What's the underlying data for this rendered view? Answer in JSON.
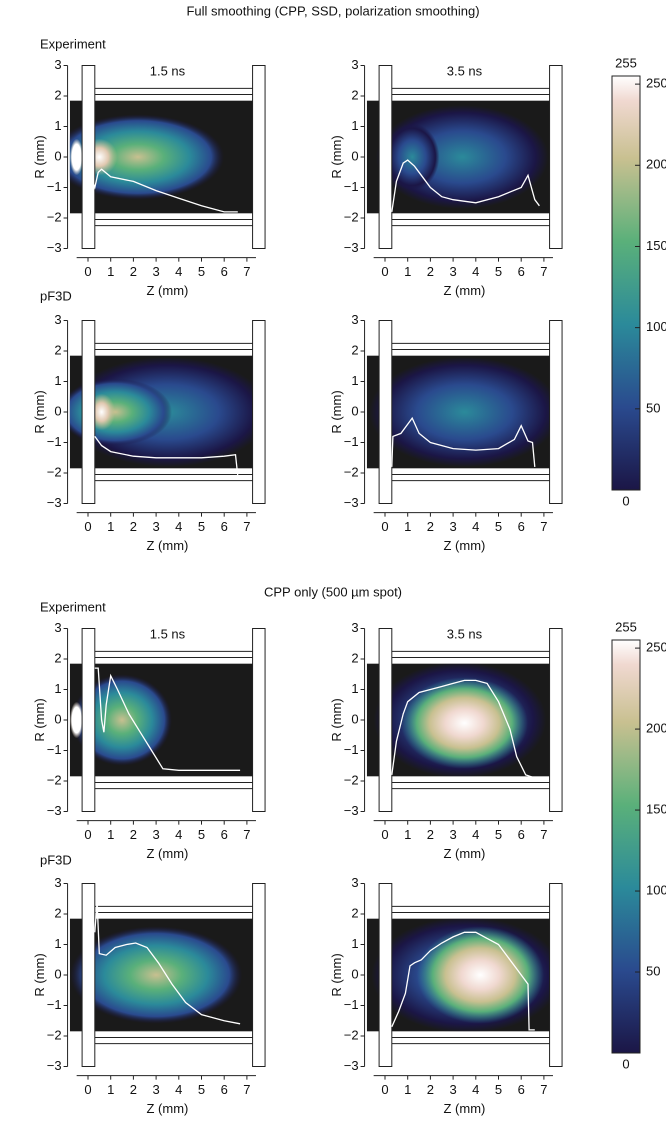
{
  "sections": [
    {
      "title": "Full smoothing (CPP, SSD, polarization smoothing)",
      "rows": [
        "Experiment",
        "pF3D"
      ]
    },
    {
      "title": "CPP only (500 µm spot)",
      "rows": [
        "Experiment",
        "pF3D"
      ]
    }
  ],
  "chart_data": [
    {
      "type": "heatmap",
      "title": "1.5 ns",
      "xlabel": "Z (mm)",
      "ylabel": "R (mm)",
      "xlim": [
        -0.9,
        7.4
      ],
      "ylim": [
        -3.3,
        3.3
      ],
      "xticks": [
        0,
        1,
        2,
        3,
        4,
        5,
        6,
        7
      ],
      "yticks": [
        {
          "value": -3,
          "label": "−3"
        },
        {
          "value": -2,
          "label": "−2"
        },
        {
          "value": -1,
          "label": "−1"
        },
        0,
        1,
        2,
        3
      ],
      "line_color": "#ffffff",
      "x": [
        0.2,
        0.3,
        0.45,
        0.6,
        1,
        2,
        3,
        4,
        5,
        6,
        6.6
      ],
      "values": [
        -0.8,
        -1.0,
        -0.5,
        -0.4,
        -0.65,
        -0.8,
        -1.1,
        -1.35,
        -1.6,
        -1.8,
        -1.8
      ]
    },
    {
      "type": "heatmap",
      "title": "3.5 ns",
      "xlabel": "Z (mm)",
      "ylabel": "R (mm)",
      "xlim": [
        -0.9,
        7.4
      ],
      "ylim": [
        -3.3,
        3.3
      ],
      "xticks": [
        0,
        1,
        2,
        3,
        4,
        5,
        6,
        7
      ],
      "yticks": [
        {
          "value": -3,
          "label": "−3"
        },
        {
          "value": -2,
          "label": "−2"
        },
        {
          "value": -1,
          "label": "−1"
        },
        0,
        1,
        2,
        3
      ],
      "line_color": "#ffffff",
      "x": [
        0.3,
        0.5,
        0.8,
        1.0,
        1.3,
        1.6,
        2,
        2.5,
        3,
        4,
        5,
        6,
        6.3,
        6.6,
        6.8
      ],
      "values": [
        -1.8,
        -0.8,
        -0.2,
        -0.1,
        -0.3,
        -0.6,
        -1.0,
        -1.3,
        -1.4,
        -1.5,
        -1.3,
        -1.0,
        -0.6,
        -1.4,
        -1.6
      ]
    },
    {
      "type": "heatmap",
      "xlabel": "Z (mm)",
      "ylabel": "R (mm)",
      "xlim": [
        -0.9,
        7.4
      ],
      "ylim": [
        -3.3,
        3.3
      ],
      "xticks": [
        0,
        1,
        2,
        3,
        4,
        5,
        6,
        7
      ],
      "yticks": [
        {
          "value": -3,
          "label": "−3"
        },
        {
          "value": -2,
          "label": "−2"
        },
        {
          "value": -1,
          "label": "−1"
        },
        0,
        1,
        2,
        3
      ],
      "line_color": "#ffffff",
      "x": [
        0.3,
        0.6,
        1,
        2,
        3,
        4,
        5,
        6,
        6.5,
        6.6
      ],
      "values": [
        -0.8,
        -1.1,
        -1.3,
        -1.45,
        -1.5,
        -1.5,
        -1.5,
        -1.45,
        -1.4,
        -2.1
      ]
    },
    {
      "type": "heatmap",
      "xlabel": "Z (mm)",
      "ylabel": "R (mm)",
      "xlim": [
        -0.9,
        7.4
      ],
      "ylim": [
        -3.3,
        3.3
      ],
      "xticks": [
        0,
        1,
        2,
        3,
        4,
        5,
        6,
        7
      ],
      "yticks": [
        {
          "value": -3,
          "label": "−3"
        },
        {
          "value": -2,
          "label": "−2"
        },
        {
          "value": -1,
          "label": "−1"
        },
        0,
        1,
        2,
        3
      ],
      "line_color": "#ffffff",
      "x": [
        0.3,
        0.35,
        0.7,
        1.2,
        1.5,
        2,
        3,
        4,
        5,
        5.7,
        6.0,
        6.3,
        6.5,
        6.6
      ],
      "values": [
        -1.8,
        -0.8,
        -0.7,
        -0.2,
        -0.7,
        -1.0,
        -1.2,
        -1.25,
        -1.2,
        -0.9,
        -0.45,
        -0.95,
        -1.0,
        -1.8
      ]
    },
    {
      "type": "heatmap",
      "title": "1.5 ns",
      "xlabel": "Z (mm)",
      "ylabel": "R (mm)",
      "xlim": [
        -0.9,
        7.4
      ],
      "ylim": [
        -3.3,
        3.3
      ],
      "xticks": [
        0,
        1,
        2,
        3,
        4,
        5,
        6,
        7
      ],
      "yticks": [
        {
          "value": -3,
          "label": "−3"
        },
        {
          "value": -2,
          "label": "−2"
        },
        {
          "value": -1,
          "label": "−1"
        },
        0,
        1,
        2,
        3
      ],
      "line_color": "#ffffff",
      "x": [
        0.3,
        0.45,
        0.6,
        0.7,
        0.8,
        1.0,
        1.3,
        1.8,
        2.3,
        2.8,
        3.3,
        4,
        5,
        6,
        6.7
      ],
      "values": [
        1.7,
        1.7,
        0.0,
        -0.4,
        0.5,
        1.45,
        1.0,
        0.2,
        -0.4,
        -1.0,
        -1.6,
        -1.65,
        -1.65,
        -1.65,
        -1.65
      ]
    },
    {
      "type": "heatmap",
      "title": "3.5 ns",
      "xlabel": "Z (mm)",
      "ylabel": "R (mm)",
      "xlim": [
        -0.9,
        7.4
      ],
      "ylim": [
        -3.3,
        3.3
      ],
      "xticks": [
        0,
        1,
        2,
        3,
        4,
        5,
        6,
        7
      ],
      "yticks": [
        {
          "value": -3,
          "label": "−3"
        },
        {
          "value": -2,
          "label": "−2"
        },
        {
          "value": -1,
          "label": "−1"
        },
        0,
        1,
        2,
        3
      ],
      "line_color": "#ffffff",
      "x": [
        0.3,
        0.5,
        0.8,
        1,
        1.5,
        2,
        2.5,
        3,
        3.5,
        4,
        4.5,
        5,
        5.5,
        5.8,
        6.2,
        6.6
      ],
      "values": [
        -1.8,
        -0.7,
        0.2,
        0.6,
        0.9,
        1.0,
        1.1,
        1.2,
        1.3,
        1.3,
        1.2,
        0.6,
        -0.3,
        -1.2,
        -1.8,
        -1.9
      ]
    },
    {
      "type": "heatmap",
      "xlabel": "Z (mm)",
      "ylabel": "R (mm)",
      "xlim": [
        -0.9,
        7.4
      ],
      "ylim": [
        -3.3,
        3.3
      ],
      "xticks": [
        0,
        1,
        2,
        3,
        4,
        5,
        6,
        7
      ],
      "yticks": [
        {
          "value": -3,
          "label": "−3"
        },
        {
          "value": -2,
          "label": "−2"
        },
        {
          "value": -1,
          "label": "−1"
        },
        0,
        1,
        2,
        3
      ],
      "line_color": "#ffffff",
      "x": [
        0.3,
        0.4,
        0.5,
        0.8,
        1.2,
        1.7,
        2.1,
        2.6,
        3.1,
        3.7,
        4.3,
        5,
        6,
        6.7
      ],
      "values": [
        1.4,
        2.4,
        0.7,
        0.65,
        0.9,
        1.0,
        1.05,
        0.9,
        0.4,
        -0.3,
        -0.9,
        -1.3,
        -1.5,
        -1.6
      ]
    },
    {
      "type": "heatmap",
      "xlabel": "Z (mm)",
      "ylabel": "R (mm)",
      "xlim": [
        -0.9,
        7.4
      ],
      "ylim": [
        -3.3,
        3.3
      ],
      "xticks": [
        0,
        1,
        2,
        3,
        4,
        5,
        6,
        7
      ],
      "yticks": [
        {
          "value": -3,
          "label": "−3"
        },
        {
          "value": -2,
          "label": "−2"
        },
        {
          "value": -1,
          "label": "−1"
        },
        0,
        1,
        2,
        3
      ],
      "line_color": "#ffffff",
      "x": [
        0.3,
        0.6,
        0.9,
        1.1,
        1.3,
        1.6,
        2,
        2.5,
        3,
        3.5,
        4,
        4.5,
        5,
        5.8,
        6.3,
        6.35,
        6.6
      ],
      "values": [
        -1.7,
        -1.2,
        -0.6,
        0.3,
        0.4,
        0.5,
        0.8,
        1.05,
        1.25,
        1.4,
        1.4,
        1.2,
        1.0,
        0.2,
        -0.3,
        -1.8,
        -1.8
      ]
    },
    {
      "type": "colorbar",
      "ylim": [
        0,
        255
      ],
      "yticks": [
        0,
        50,
        100,
        150,
        200,
        250,
        255
      ]
    },
    {
      "type": "colorbar",
      "ylim": [
        0,
        255
      ],
      "yticks": [
        0,
        50,
        100,
        150,
        200,
        250,
        255
      ]
    }
  ]
}
